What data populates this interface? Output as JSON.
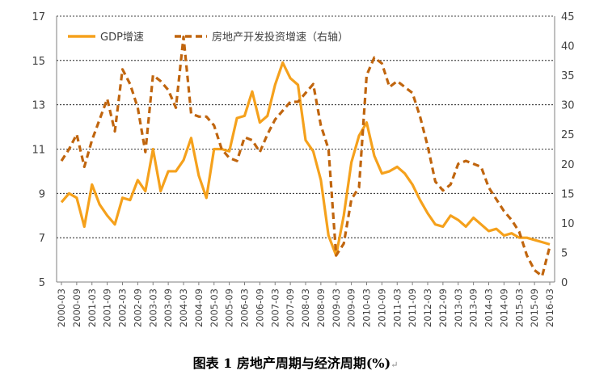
{
  "caption": "图表 1 房地产周期与经济周期(%)",
  "caption_mark": "↵",
  "chart_data": {
    "type": "line",
    "title": "",
    "categories": [
      "2000-03",
      "2000-06",
      "2000-09",
      "2000-12",
      "2001-03",
      "2001-06",
      "2001-09",
      "2001-12",
      "2002-03",
      "2002-06",
      "2002-09",
      "2002-12",
      "2003-03",
      "2003-06",
      "2003-09",
      "2003-12",
      "2004-03",
      "2004-06",
      "2004-09",
      "2004-12",
      "2005-03",
      "2005-06",
      "2005-09",
      "2005-12",
      "2006-03",
      "2006-06",
      "2006-09",
      "2006-12",
      "2007-03",
      "2007-06",
      "2007-09",
      "2007-12",
      "2008-03",
      "2008-06",
      "2008-09",
      "2008-12",
      "2009-03",
      "2009-06",
      "2009-09",
      "2009-12",
      "2010-03",
      "2010-06",
      "2010-09",
      "2010-12",
      "2011-03",
      "2011-06",
      "2011-09",
      "2011-12",
      "2012-03",
      "2012-06",
      "2012-09",
      "2012-12",
      "2013-03",
      "2013-06",
      "2013-09",
      "2013-12",
      "2014-03",
      "2014-06",
      "2014-09",
      "2014-12",
      "2015-03",
      "2015-06",
      "2015-09",
      "2015-12",
      "2016-03"
    ],
    "x_tick_labels": [
      "2000-03",
      "2000-09",
      "2001-03",
      "2001-09",
      "2002-03",
      "2002-09",
      "2003-03",
      "2003-09",
      "2004-03",
      "2004-09",
      "2005-03",
      "2005-09",
      "2006-03",
      "2006-09",
      "2007-03",
      "2007-09",
      "2008-03",
      "2008-09",
      "2009-03",
      "2009-09",
      "2010-03",
      "2010-09",
      "2011-03",
      "2011-09",
      "2012-03",
      "2012-09",
      "2013-03",
      "2013-09",
      "2014-03",
      "2014-09",
      "2015-03",
      "2015-09",
      "2016-03"
    ],
    "y_left": {
      "min": 5,
      "max": 17,
      "ticks": [
        "5",
        "7",
        "9",
        "11",
        "13",
        "15",
        "17"
      ]
    },
    "y_right": {
      "min": 0,
      "max": 45,
      "ticks": [
        "0",
        "5",
        "10",
        "15",
        "20",
        "25",
        "30",
        "35",
        "40",
        "45"
      ]
    },
    "grid": true,
    "legend_position": "top-left",
    "series": [
      {
        "name": "GDP增速",
        "axis": "left",
        "style": "solid",
        "color": "#F5A11C",
        "values": [
          8.6,
          9.0,
          8.8,
          7.5,
          9.4,
          8.5,
          8.0,
          7.6,
          8.8,
          8.7,
          9.6,
          9.1,
          11.0,
          9.1,
          10.0,
          10.0,
          10.5,
          11.5,
          9.8,
          8.8,
          11.0,
          11.0,
          10.9,
          12.4,
          12.5,
          13.6,
          12.2,
          12.5,
          13.9,
          14.9,
          14.2,
          13.9,
          11.4,
          10.9,
          9.6,
          7.1,
          6.2,
          8.0,
          10.4,
          11.6,
          12.2,
          10.7,
          9.9,
          10.0,
          10.2,
          9.9,
          9.4,
          8.7,
          8.1,
          7.6,
          7.5,
          8.0,
          7.8,
          7.5,
          7.9,
          7.6,
          7.3,
          7.4,
          7.1,
          7.2,
          7.0,
          7.0,
          6.9,
          6.8,
          6.7
        ]
      },
      {
        "name": "房地产开发投资增速（右轴）",
        "axis": "right",
        "style": "dashed",
        "color": "#C0650E",
        "values": [
          20.5,
          22.5,
          25.0,
          19.5,
          24.0,
          27.5,
          31.0,
          25.5,
          36.0,
          33.5,
          29.5,
          22.0,
          35.0,
          34.0,
          32.5,
          29.5,
          41.5,
          28.5,
          28.0,
          28.0,
          26.5,
          22.5,
          21.0,
          20.5,
          24.5,
          24.0,
          22.0,
          25.0,
          27.5,
          29.0,
          30.5,
          30.5,
          32.0,
          33.5,
          26.5,
          22.5,
          4.5,
          6.5,
          14.0,
          16.0,
          35.0,
          38.0,
          37.0,
          33.0,
          34.0,
          33.0,
          32.0,
          28.0,
          23.0,
          17.0,
          15.5,
          16.5,
          20.0,
          20.5,
          20.0,
          19.5,
          16.0,
          14.0,
          12.0,
          10.5,
          8.5,
          4.5,
          2.0,
          1.0,
          6.0
        ]
      }
    ]
  }
}
